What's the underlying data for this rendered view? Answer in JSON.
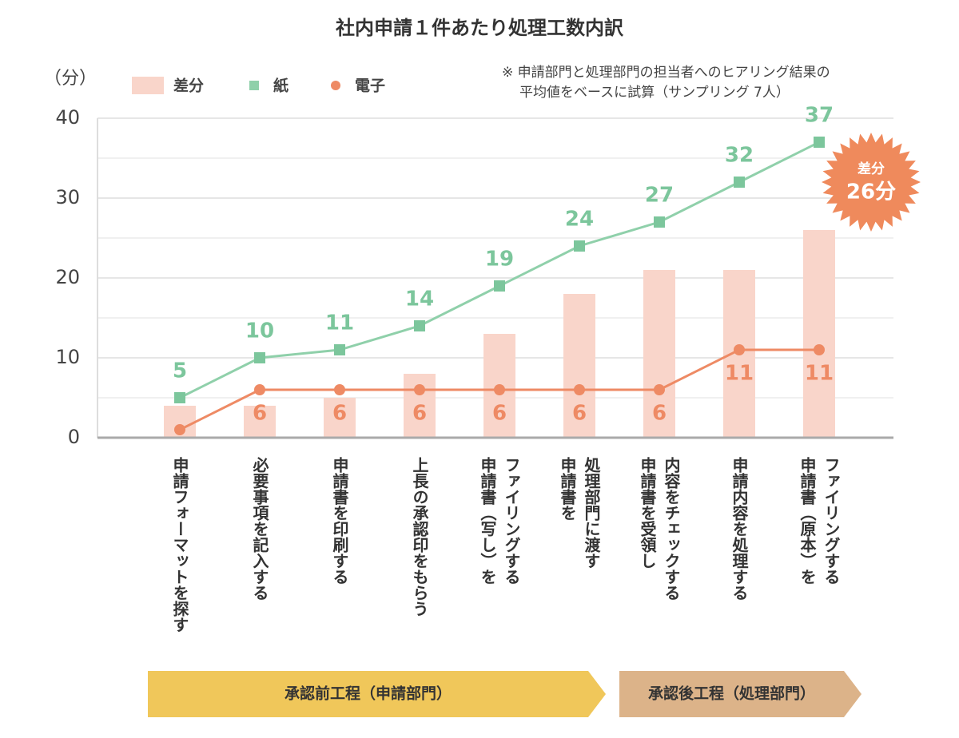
{
  "chart_data": {
    "type": "bar-line",
    "title": "社内申請１件あたり処理工数内訳",
    "y_label": "（分）",
    "note": [
      "※ 申請部門と処理部門の担当者へのヒアリング結果の",
      "平均値をベースに試算（サンプリング 7人）"
    ],
    "categories": [
      [
        "申請フォーマットを探す"
      ],
      [
        "必要事項を記入する"
      ],
      [
        "申請書を印刷する"
      ],
      [
        "上長の承認印をもらう"
      ],
      [
        "申請書（写し）を",
        "ファイリングする"
      ],
      [
        "申請書を",
        "処理部門に渡す"
      ],
      [
        "申請書を受領し",
        "内容をチェックする"
      ],
      [
        "申請内容を処理する"
      ],
      [
        "申請書（原本）を",
        "ファイリングする"
      ]
    ],
    "series": [
      {
        "name": "差分",
        "type": "bar",
        "color": "#f9d5ca",
        "values": [
          4,
          4,
          5,
          8,
          13,
          18,
          21,
          21,
          26
        ]
      },
      {
        "name": "紙",
        "type": "line",
        "color": "#8fd0aa",
        "values": [
          5,
          10,
          11,
          14,
          19,
          24,
          27,
          32,
          37
        ]
      },
      {
        "name": "電子",
        "type": "line",
        "color": "#ee8a64",
        "values": [
          1,
          6,
          6,
          6,
          6,
          6,
          6,
          11,
          11
        ],
        "value_labels": [
          null,
          "6",
          "6",
          "6",
          "6",
          "6",
          "6",
          "11",
          "11"
        ]
      }
    ],
    "ylim": [
      0,
      40
    ],
    "yticks": [
      0,
      10,
      20,
      30,
      40
    ],
    "minor_yticks": [
      5,
      15,
      25,
      35
    ],
    "grid": true,
    "callout": {
      "label": "差分",
      "text": "26分",
      "value": 26
    },
    "phases": [
      {
        "label": "承認前工程（申請部門）",
        "color": "#f0c75a"
      },
      {
        "label": "承認後工程（処理部門）",
        "color": "#dcb389"
      }
    ]
  }
}
